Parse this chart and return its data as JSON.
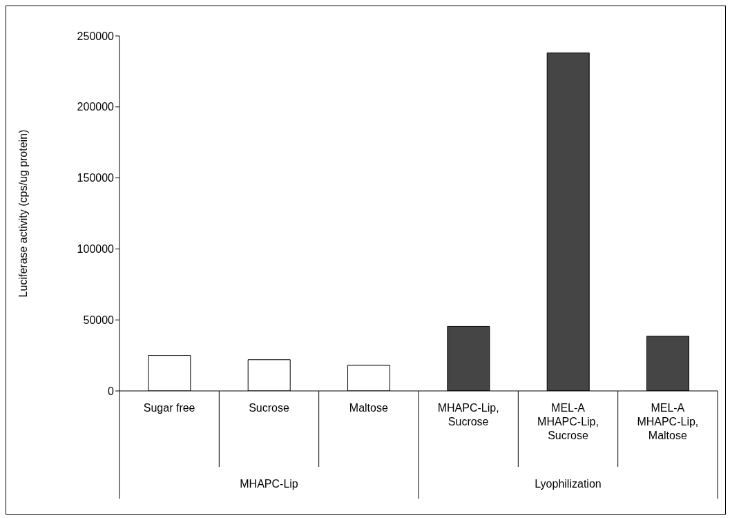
{
  "chart_data": {
    "type": "bar",
    "ylabel": "Luciferase activity (cps/ug protein)",
    "categories": [
      "Sugar free",
      "Sucrose",
      "Maltose",
      "MHAPC-Lip, Sucrose",
      "MEL-A MHAPC-Lip, Sucrose",
      "MEL-A MHAPC-Lip, Maltose"
    ],
    "values": [
      25000,
      22000,
      18000,
      45500,
      238000,
      38500
    ],
    "colors": [
      "#ffffff",
      "#ffffff",
      "#ffffff",
      "#454545",
      "#454545",
      "#454545"
    ],
    "ylim": [
      0,
      250000
    ],
    "yticks": [
      0,
      50000,
      100000,
      150000,
      200000,
      250000
    ],
    "annotations": [
      "MHAPC-Lip",
      "Lyophilization"
    ],
    "grid": false,
    "legend": false
  }
}
